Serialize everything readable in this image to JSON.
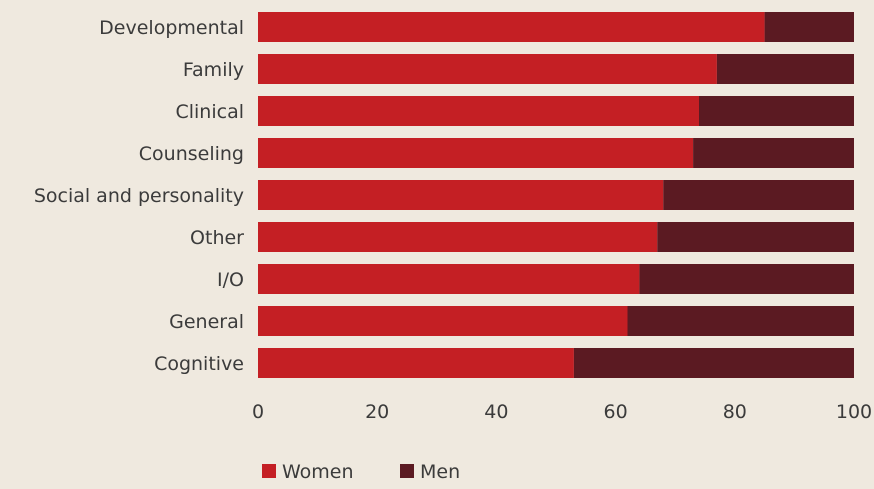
{
  "chart_data": {
    "type": "bar",
    "orientation": "horizontal",
    "stacked": true,
    "categories": [
      "Developmental",
      "Family",
      "Clinical",
      "Counseling",
      "Social and personality",
      "Other",
      "I/O",
      "General",
      "Cognitive"
    ],
    "series": [
      {
        "name": "Women",
        "color": "#c41f24",
        "values": [
          85,
          77,
          74,
          73,
          68,
          67,
          64,
          62,
          53
        ]
      },
      {
        "name": "Men",
        "color": "#5b1a22",
        "values": [
          15,
          23,
          26,
          27,
          32,
          33,
          36,
          38,
          47
        ]
      }
    ],
    "xlim": [
      0,
      100
    ],
    "xticks": [
      "0",
      "20",
      "40",
      "60",
      "80",
      "100"
    ],
    "grid": false,
    "legend_position": "bottom"
  }
}
